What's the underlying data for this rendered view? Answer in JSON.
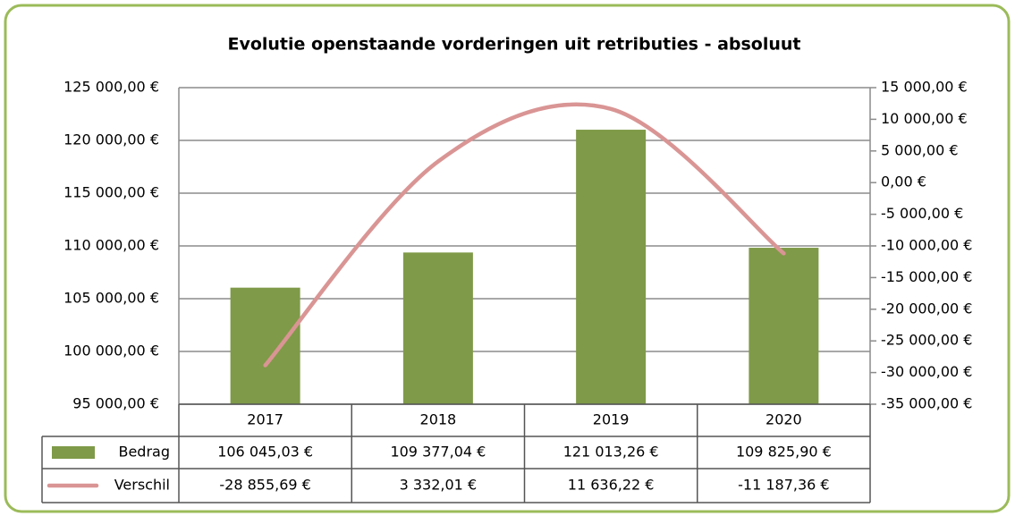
{
  "chart_data": {
    "type": "bar",
    "title": "Evolutie openstaande vorderingen uit retributies - absoluut",
    "categories": [
      "2017",
      "2018",
      "2019",
      "2020"
    ],
    "series": [
      {
        "name": "Bedrag",
        "color": "#7f9a48",
        "type": "bar",
        "axis": "y",
        "values": [
          106045.03,
          109377.04,
          121013.26,
          109825.9
        ],
        "value_labels": [
          "106 045,03 €",
          "109 377,04 €",
          "121 013,26 €",
          "109 825,90 €"
        ]
      },
      {
        "name": "Verschil",
        "color": "#d99594",
        "type": "line",
        "axis": "y2",
        "values": [
          -28855.69,
          3332.01,
          11636.22,
          -11187.36
        ],
        "value_labels": [
          "-28 855,69 €",
          "3 332,01 €",
          "11 636,22 €",
          "-11 187,36 €"
        ]
      }
    ],
    "ylim": [
      95000,
      125000
    ],
    "yticks": [
      {
        "value": 95000,
        "label": "95 000,00 €"
      },
      {
        "value": 100000,
        "label": "100 000,00 €"
      },
      {
        "value": 105000,
        "label": "105 000,00 €"
      },
      {
        "value": 110000,
        "label": "110 000,00 €"
      },
      {
        "value": 115000,
        "label": "115 000,00 €"
      },
      {
        "value": 120000,
        "label": "120 000,00 €"
      },
      {
        "value": 125000,
        "label": "125 000,00 €"
      }
    ],
    "y2lim": [
      -35000,
      15000
    ],
    "y2ticks": [
      {
        "value": -35000,
        "label": "-35 000,00 €"
      },
      {
        "value": -30000,
        "label": "-30 000,00 €"
      },
      {
        "value": -25000,
        "label": "-25 000,00 €"
      },
      {
        "value": -20000,
        "label": "-20 000,00 €"
      },
      {
        "value": -15000,
        "label": "-15 000,00 €"
      },
      {
        "value": -10000,
        "label": "-10 000,00 €"
      },
      {
        "value": -5000,
        "label": "-5 000,00 €"
      },
      {
        "value": 0,
        "label": "0,00 €"
      },
      {
        "value": 5000,
        "label": "5 000,00 €"
      },
      {
        "value": 10000,
        "label": "10 000,00 €"
      },
      {
        "value": 15000,
        "label": "15 000,00 €"
      }
    ],
    "grid": true
  }
}
